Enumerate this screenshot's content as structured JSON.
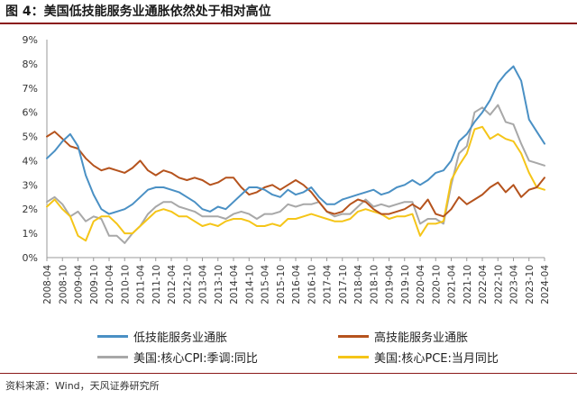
{
  "title": "图 4：美国低技能服务业通胀依然处于相对高位",
  "source": "资料来源：Wind，天风证券研究所",
  "chart_data": {
    "type": "line",
    "y_ticks": [
      "9%",
      "8%",
      "7%",
      "6%",
      "5%",
      "4%",
      "3%",
      "2%",
      "1%",
      "0%"
    ],
    "ylim": [
      0,
      9
    ],
    "y_unit": "%",
    "x_ticks": [
      "2008-04",
      "2008-10",
      "2009-04",
      "2009-10",
      "2010-04",
      "2010-10",
      "2011-04",
      "2011-10",
      "2012-04",
      "2012-10",
      "2013-04",
      "2013-10",
      "2014-04",
      "2014-10",
      "2015-04",
      "2015-10",
      "2016-04",
      "2016-10",
      "2017-04",
      "2017-10",
      "2018-04",
      "2018-10",
      "2019-04",
      "2019-10",
      "2020-04",
      "2020-10",
      "2021-04",
      "2021-10",
      "2022-04",
      "2022-10",
      "2023-04",
      "2023-10",
      "2024-04"
    ],
    "xlim": [
      "2008-04",
      "2024-04"
    ],
    "grid": false,
    "legend_position": "bottom",
    "series": [
      {
        "name": "低技能服务业通胀",
        "color": "#4a90c4",
        "points": [
          [
            "2008-04",
            4.1
          ],
          [
            "2008-07",
            4.4
          ],
          [
            "2008-10",
            4.8
          ],
          [
            "2009-01",
            5.1
          ],
          [
            "2009-04",
            4.6
          ],
          [
            "2009-07",
            3.4
          ],
          [
            "2009-10",
            2.6
          ],
          [
            "2010-01",
            2.0
          ],
          [
            "2010-04",
            1.8
          ],
          [
            "2010-07",
            1.9
          ],
          [
            "2010-10",
            2.0
          ],
          [
            "2011-01",
            2.2
          ],
          [
            "2011-04",
            2.5
          ],
          [
            "2011-07",
            2.8
          ],
          [
            "2011-10",
            2.9
          ],
          [
            "2012-01",
            2.9
          ],
          [
            "2012-04",
            2.8
          ],
          [
            "2012-07",
            2.7
          ],
          [
            "2012-10",
            2.5
          ],
          [
            "2013-01",
            2.3
          ],
          [
            "2013-04",
            2.0
          ],
          [
            "2013-07",
            1.9
          ],
          [
            "2013-10",
            2.1
          ],
          [
            "2014-01",
            2.0
          ],
          [
            "2014-04",
            2.3
          ],
          [
            "2014-07",
            2.6
          ],
          [
            "2014-10",
            2.9
          ],
          [
            "2015-01",
            2.9
          ],
          [
            "2015-04",
            2.8
          ],
          [
            "2015-07",
            2.6
          ],
          [
            "2015-10",
            2.5
          ],
          [
            "2016-01",
            2.8
          ],
          [
            "2016-04",
            2.6
          ],
          [
            "2016-07",
            2.7
          ],
          [
            "2016-10",
            2.9
          ],
          [
            "2017-01",
            2.5
          ],
          [
            "2017-04",
            2.2
          ],
          [
            "2017-07",
            2.2
          ],
          [
            "2017-10",
            2.4
          ],
          [
            "2018-01",
            2.5
          ],
          [
            "2018-04",
            2.6
          ],
          [
            "2018-07",
            2.7
          ],
          [
            "2018-10",
            2.8
          ],
          [
            "2019-01",
            2.6
          ],
          [
            "2019-04",
            2.7
          ],
          [
            "2019-07",
            2.9
          ],
          [
            "2019-10",
            3.0
          ],
          [
            "2020-01",
            3.2
          ],
          [
            "2020-04",
            3.0
          ],
          [
            "2020-07",
            3.2
          ],
          [
            "2020-10",
            3.5
          ],
          [
            "2021-01",
            3.6
          ],
          [
            "2021-04",
            4.0
          ],
          [
            "2021-07",
            4.8
          ],
          [
            "2021-10",
            5.1
          ],
          [
            "2022-01",
            5.6
          ],
          [
            "2022-04",
            6.0
          ],
          [
            "2022-07",
            6.5
          ],
          [
            "2022-10",
            7.2
          ],
          [
            "2023-01",
            7.6
          ],
          [
            "2023-04",
            7.9
          ],
          [
            "2023-07",
            7.3
          ],
          [
            "2023-10",
            5.7
          ],
          [
            "2024-01",
            5.2
          ],
          [
            "2024-04",
            4.7
          ]
        ]
      },
      {
        "name": "高技能服务业通胀",
        "color": "#b5531d",
        "points": [
          [
            "2008-04",
            5.0
          ],
          [
            "2008-07",
            5.2
          ],
          [
            "2008-10",
            4.9
          ],
          [
            "2009-01",
            4.6
          ],
          [
            "2009-04",
            4.5
          ],
          [
            "2009-07",
            4.1
          ],
          [
            "2009-10",
            3.8
          ],
          [
            "2010-01",
            3.6
          ],
          [
            "2010-04",
            3.7
          ],
          [
            "2010-07",
            3.6
          ],
          [
            "2010-10",
            3.5
          ],
          [
            "2011-01",
            3.7
          ],
          [
            "2011-04",
            4.0
          ],
          [
            "2011-07",
            3.6
          ],
          [
            "2011-10",
            3.4
          ],
          [
            "2012-01",
            3.6
          ],
          [
            "2012-04",
            3.5
          ],
          [
            "2012-07",
            3.3
          ],
          [
            "2012-10",
            3.2
          ],
          [
            "2013-01",
            3.3
          ],
          [
            "2013-04",
            3.2
          ],
          [
            "2013-07",
            3.0
          ],
          [
            "2013-10",
            3.1
          ],
          [
            "2014-01",
            3.3
          ],
          [
            "2014-04",
            3.3
          ],
          [
            "2014-07",
            2.9
          ],
          [
            "2014-10",
            2.6
          ],
          [
            "2015-01",
            2.7
          ],
          [
            "2015-04",
            2.9
          ],
          [
            "2015-07",
            3.0
          ],
          [
            "2015-10",
            2.8
          ],
          [
            "2016-01",
            3.0
          ],
          [
            "2016-04",
            3.2
          ],
          [
            "2016-07",
            3.0
          ],
          [
            "2016-10",
            2.7
          ],
          [
            "2017-01",
            2.3
          ],
          [
            "2017-04",
            1.9
          ],
          [
            "2017-07",
            1.8
          ],
          [
            "2017-10",
            1.9
          ],
          [
            "2018-01",
            2.2
          ],
          [
            "2018-04",
            2.4
          ],
          [
            "2018-07",
            2.3
          ],
          [
            "2018-10",
            2.0
          ],
          [
            "2019-01",
            1.8
          ],
          [
            "2019-04",
            1.8
          ],
          [
            "2019-07",
            1.9
          ],
          [
            "2019-10",
            2.0
          ],
          [
            "2020-01",
            2.2
          ],
          [
            "2020-04",
            2.0
          ],
          [
            "2020-07",
            2.4
          ],
          [
            "2020-10",
            1.8
          ],
          [
            "2021-01",
            1.7
          ],
          [
            "2021-04",
            2.0
          ],
          [
            "2021-07",
            2.5
          ],
          [
            "2021-10",
            2.2
          ],
          [
            "2022-01",
            2.4
          ],
          [
            "2022-04",
            2.6
          ],
          [
            "2022-07",
            2.9
          ],
          [
            "2022-10",
            3.1
          ],
          [
            "2023-01",
            2.7
          ],
          [
            "2023-04",
            3.0
          ],
          [
            "2023-07",
            2.5
          ],
          [
            "2023-10",
            2.8
          ],
          [
            "2024-01",
            2.9
          ],
          [
            "2024-04",
            3.3
          ]
        ]
      },
      {
        "name": "美国:核心CPI:季调:同比",
        "color": "#a8a8a8",
        "points": [
          [
            "2008-04",
            2.3
          ],
          [
            "2008-07",
            2.5
          ],
          [
            "2008-10",
            2.2
          ],
          [
            "2009-01",
            1.7
          ],
          [
            "2009-04",
            1.9
          ],
          [
            "2009-07",
            1.5
          ],
          [
            "2009-10",
            1.7
          ],
          [
            "2010-01",
            1.6
          ],
          [
            "2010-04",
            0.9
          ],
          [
            "2010-07",
            0.9
          ],
          [
            "2010-10",
            0.6
          ],
          [
            "2011-01",
            1.0
          ],
          [
            "2011-04",
            1.3
          ],
          [
            "2011-07",
            1.8
          ],
          [
            "2011-10",
            2.1
          ],
          [
            "2012-01",
            2.3
          ],
          [
            "2012-04",
            2.3
          ],
          [
            "2012-07",
            2.1
          ],
          [
            "2012-10",
            2.0
          ],
          [
            "2013-01",
            1.9
          ],
          [
            "2013-04",
            1.7
          ],
          [
            "2013-07",
            1.7
          ],
          [
            "2013-10",
            1.7
          ],
          [
            "2014-01",
            1.6
          ],
          [
            "2014-04",
            1.8
          ],
          [
            "2014-07",
            1.9
          ],
          [
            "2014-10",
            1.8
          ],
          [
            "2015-01",
            1.6
          ],
          [
            "2015-04",
            1.8
          ],
          [
            "2015-07",
            1.8
          ],
          [
            "2015-10",
            1.9
          ],
          [
            "2016-01",
            2.2
          ],
          [
            "2016-04",
            2.1
          ],
          [
            "2016-07",
            2.2
          ],
          [
            "2016-10",
            2.2
          ],
          [
            "2017-01",
            2.3
          ],
          [
            "2017-04",
            1.9
          ],
          [
            "2017-07",
            1.7
          ],
          [
            "2017-10",
            1.8
          ],
          [
            "2018-01",
            1.8
          ],
          [
            "2018-04",
            2.1
          ],
          [
            "2018-07",
            2.4
          ],
          [
            "2018-10",
            2.1
          ],
          [
            "2019-01",
            2.2
          ],
          [
            "2019-04",
            2.1
          ],
          [
            "2019-07",
            2.2
          ],
          [
            "2019-10",
            2.3
          ],
          [
            "2020-01",
            2.3
          ],
          [
            "2020-04",
            1.4
          ],
          [
            "2020-07",
            1.6
          ],
          [
            "2020-10",
            1.6
          ],
          [
            "2021-01",
            1.4
          ],
          [
            "2021-04",
            3.0
          ],
          [
            "2021-07",
            4.3
          ],
          [
            "2021-10",
            4.6
          ],
          [
            "2022-01",
            6.0
          ],
          [
            "2022-04",
            6.2
          ],
          [
            "2022-07",
            5.9
          ],
          [
            "2022-10",
            6.3
          ],
          [
            "2023-01",
            5.6
          ],
          [
            "2023-04",
            5.5
          ],
          [
            "2023-07",
            4.7
          ],
          [
            "2023-10",
            4.0
          ],
          [
            "2024-01",
            3.9
          ],
          [
            "2024-04",
            3.8
          ]
        ]
      },
      {
        "name": "美国:核心PCE:当月同比",
        "color": "#f5c518",
        "points": [
          [
            "2008-04",
            2.1
          ],
          [
            "2008-07",
            2.4
          ],
          [
            "2008-10",
            2.0
          ],
          [
            "2009-01",
            1.7
          ],
          [
            "2009-04",
            0.9
          ],
          [
            "2009-07",
            0.7
          ],
          [
            "2009-10",
            1.5
          ],
          [
            "2010-01",
            1.7
          ],
          [
            "2010-04",
            1.7
          ],
          [
            "2010-07",
            1.4
          ],
          [
            "2010-10",
            1.0
          ],
          [
            "2011-01",
            1.0
          ],
          [
            "2011-04",
            1.3
          ],
          [
            "2011-07",
            1.6
          ],
          [
            "2011-10",
            1.9
          ],
          [
            "2012-01",
            2.0
          ],
          [
            "2012-04",
            1.9
          ],
          [
            "2012-07",
            1.7
          ],
          [
            "2012-10",
            1.7
          ],
          [
            "2013-01",
            1.5
          ],
          [
            "2013-04",
            1.3
          ],
          [
            "2013-07",
            1.4
          ],
          [
            "2013-10",
            1.3
          ],
          [
            "2014-01",
            1.5
          ],
          [
            "2014-04",
            1.6
          ],
          [
            "2014-07",
            1.6
          ],
          [
            "2014-10",
            1.5
          ],
          [
            "2015-01",
            1.3
          ],
          [
            "2015-04",
            1.3
          ],
          [
            "2015-07",
            1.4
          ],
          [
            "2015-10",
            1.3
          ],
          [
            "2016-01",
            1.6
          ],
          [
            "2016-04",
            1.6
          ],
          [
            "2016-07",
            1.7
          ],
          [
            "2016-10",
            1.8
          ],
          [
            "2017-01",
            1.7
          ],
          [
            "2017-04",
            1.6
          ],
          [
            "2017-07",
            1.5
          ],
          [
            "2017-10",
            1.5
          ],
          [
            "2018-01",
            1.6
          ],
          [
            "2018-04",
            1.9
          ],
          [
            "2018-07",
            2.0
          ],
          [
            "2018-10",
            1.9
          ],
          [
            "2019-01",
            1.8
          ],
          [
            "2019-04",
            1.6
          ],
          [
            "2019-07",
            1.7
          ],
          [
            "2019-10",
            1.7
          ],
          [
            "2020-01",
            1.8
          ],
          [
            "2020-04",
            0.9
          ],
          [
            "2020-07",
            1.4
          ],
          [
            "2020-10",
            1.4
          ],
          [
            "2021-01",
            1.5
          ],
          [
            "2021-04",
            3.2
          ],
          [
            "2021-07",
            3.8
          ],
          [
            "2021-10",
            4.3
          ],
          [
            "2022-01",
            5.3
          ],
          [
            "2022-04",
            5.4
          ],
          [
            "2022-07",
            4.9
          ],
          [
            "2022-10",
            5.1
          ],
          [
            "2023-01",
            4.9
          ],
          [
            "2023-04",
            4.8
          ],
          [
            "2023-07",
            4.3
          ],
          [
            "2023-10",
            3.5
          ],
          [
            "2024-01",
            2.9
          ],
          [
            "2024-04",
            2.8
          ]
        ]
      }
    ]
  }
}
